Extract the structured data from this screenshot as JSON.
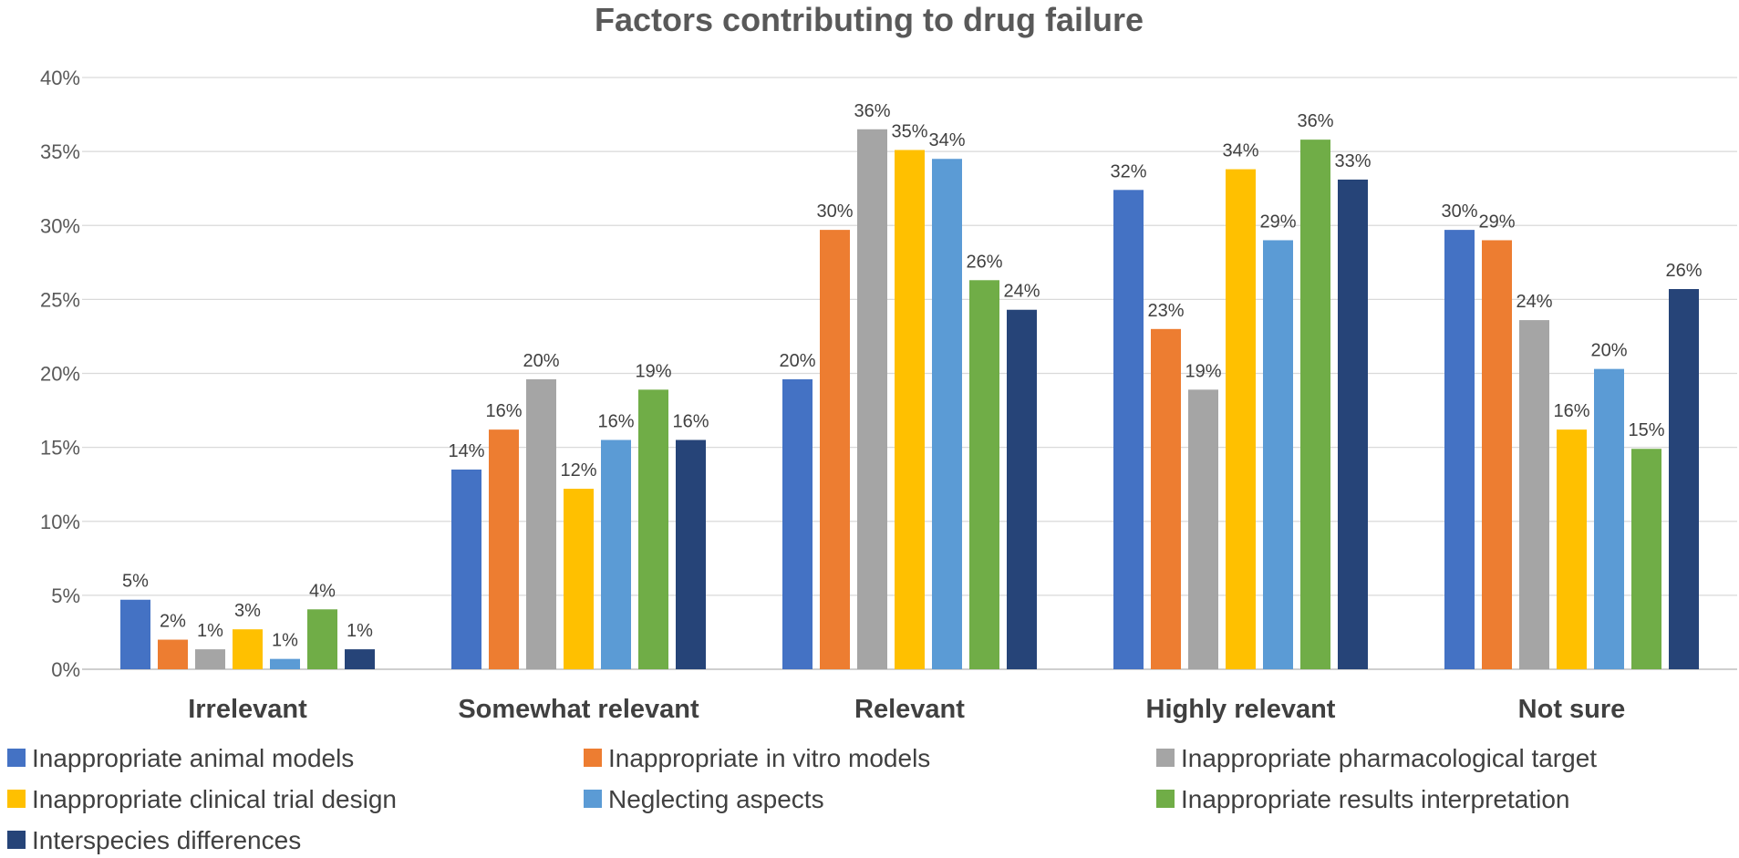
{
  "chart_data": {
    "type": "bar",
    "title": "Factors contributing to drug failure",
    "xlabel": "",
    "ylabel": "",
    "ylim": [
      0,
      40
    ],
    "y_ticks": [
      0,
      5,
      10,
      15,
      20,
      25,
      30,
      35,
      40
    ],
    "y_tick_labels": [
      "0%",
      "5%",
      "10%",
      "15%",
      "20%",
      "25%",
      "30%",
      "35%",
      "40%"
    ],
    "grid": true,
    "legend_position": "bottom",
    "categories": [
      "Irrelevant",
      "Somewhat relevant",
      "Relevant",
      "Highly relevant",
      "Not sure"
    ],
    "series": [
      {
        "name": "Inappropriate animal models",
        "color": "#4472C4",
        "values": [
          4.7,
          13.5,
          19.6,
          32.4,
          29.7
        ],
        "labels": [
          "5%",
          "14%",
          "20%",
          "32%",
          "30%"
        ]
      },
      {
        "name": "Inappropriate in vitro models",
        "color": "#ED7D31",
        "values": [
          2.0,
          16.2,
          29.7,
          23.0,
          29.0
        ],
        "labels": [
          "2%",
          "16%",
          "30%",
          "23%",
          "29%"
        ]
      },
      {
        "name": "Inappropriate pharmacological target",
        "color": "#A5A5A5",
        "values": [
          1.35,
          19.6,
          36.5,
          18.9,
          23.6
        ],
        "labels": [
          "1%",
          "20%",
          "36%",
          "19%",
          "24%"
        ]
      },
      {
        "name": "Inappropriate clinical trial design",
        "color": "#FFC000",
        "values": [
          2.7,
          12.2,
          35.1,
          33.8,
          16.2
        ],
        "labels": [
          "3%",
          "12%",
          "35%",
          "34%",
          "16%"
        ]
      },
      {
        "name": "Neglecting aspects",
        "color": "#5B9BD5",
        "values": [
          0.7,
          15.5,
          34.5,
          29.0,
          20.3
        ],
        "labels": [
          "1%",
          "16%",
          "34%",
          "29%",
          "20%"
        ]
      },
      {
        "name": "Inappropriate results interpretation",
        "color": "#70AD47",
        "values": [
          4.05,
          18.9,
          26.3,
          35.8,
          14.9
        ],
        "labels": [
          "4%",
          "19%",
          "26%",
          "36%",
          "15%"
        ]
      },
      {
        "name": "Interspecies differences",
        "color": "#264478",
        "values": [
          1.35,
          15.5,
          24.3,
          33.1,
          25.7
        ],
        "labels": [
          "1%",
          "16%",
          "24%",
          "33%",
          "26%"
        ]
      }
    ]
  }
}
